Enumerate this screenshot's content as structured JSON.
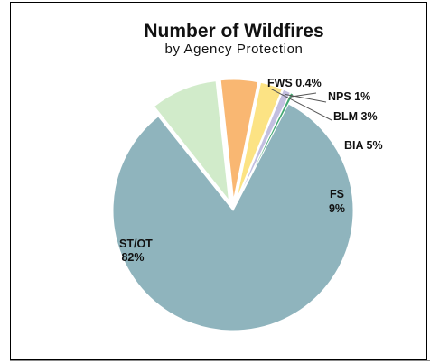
{
  "chart_data": {
    "type": "pie",
    "title": "Number of Wildfires",
    "subtitle": "by Agency Protection",
    "slices": [
      {
        "category": "ST/OT",
        "value": 82,
        "value_label": "82%",
        "color": "#8fb4bd",
        "exploded": false
      },
      {
        "category": "FS",
        "value": 9,
        "value_label": "9%",
        "color": "#d1ebca",
        "exploded": true
      },
      {
        "category": "BIA",
        "value": 5,
        "value_label": "5%",
        "color": "#f9b772",
        "exploded": true
      },
      {
        "category": "BLM",
        "value": 3,
        "value_label": "3%",
        "color": "#fce384",
        "exploded": true
      },
      {
        "category": "NPS",
        "value": 1,
        "value_label": "1%",
        "color": "#c3bfe0",
        "exploded": true
      },
      {
        "category": "FWS",
        "value": 0.4,
        "value_label": "0.4%",
        "color": "#43a872",
        "exploded": true
      }
    ],
    "labels": {
      "st_ot": "ST/OT",
      "st_ot_pct": "82%",
      "fs": "FS",
      "fs_pct": "9%",
      "bia": "BIA 5%",
      "blm": "BLM 3%",
      "nps": "NPS 1%",
      "fws": "FWS 0.4%"
    }
  }
}
